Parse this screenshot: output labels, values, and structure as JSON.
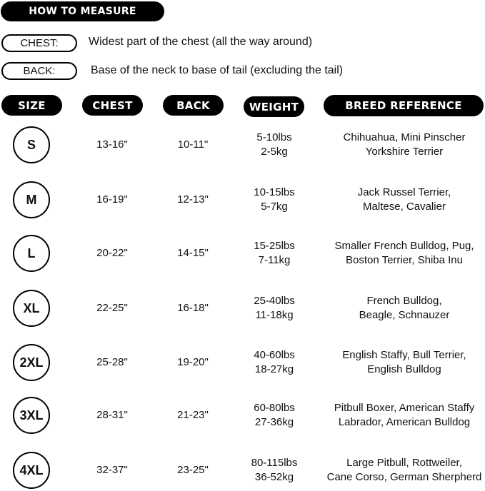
{
  "how_to_measure": {
    "title": "HOW TO MEASURE",
    "items": [
      {
        "label": "CHEST:",
        "description": "Widest part of the chest (all the way around)"
      },
      {
        "label": "BACK:",
        "description": "Base of the neck to base of tail (excluding the tail)"
      }
    ]
  },
  "table": {
    "headers": [
      "SIZE",
      "CHEST",
      "BACK",
      "WEIGHT",
      "BREED REFERENCE"
    ],
    "rows": [
      {
        "size": "S",
        "chest": "13-16\"",
        "back": "10-11\"",
        "weight_lbs": "5-10lbs",
        "weight_kg": "2-5kg",
        "breed_1": "Chihuahua, Mini Pinscher",
        "breed_2": "Yorkshire Terrier"
      },
      {
        "size": "M",
        "chest": "16-19\"",
        "back": "12-13\"",
        "weight_lbs": "10-15lbs",
        "weight_kg": "5-7kg",
        "breed_1": "Jack Russel Terrier,",
        "breed_2": "Maltese, Cavalier"
      },
      {
        "size": "L",
        "chest": "20-22\"",
        "back": "14-15\"",
        "weight_lbs": "15-25lbs",
        "weight_kg": "7-11kg",
        "breed_1": "Smaller French Bulldog, Pug,",
        "breed_2": "Boston Terrier, Shiba Inu"
      },
      {
        "size": "XL",
        "chest": "22-25\"",
        "back": "16-18\"",
        "weight_lbs": "25-40lbs",
        "weight_kg": "11-18kg",
        "breed_1": "French Bulldog,",
        "breed_2": "Beagle, Schnauzer"
      },
      {
        "size": "2XL",
        "chest": "25-28\"",
        "back": "19-20\"",
        "weight_lbs": "40-60lbs",
        "weight_kg": "18-27kg",
        "breed_1": "English Staffy, Bull Terrier,",
        "breed_2": "English Bulldog"
      },
      {
        "size": "3XL",
        "chest": "28-31\"",
        "back": "21-23\"",
        "weight_lbs": "60-80lbs",
        "weight_kg": "27-36kg",
        "breed_1": "Pitbull Boxer, American Staffy",
        "breed_2": "Labrador, American Bulldog"
      },
      {
        "size": "4XL",
        "chest": "32-37\"",
        "back": "23-25\"",
        "weight_lbs": "80-115lbs",
        "weight_kg": "36-52kg",
        "breed_1": "Large Pitbull, Rottweiler,",
        "breed_2": "Cane Corso, German Sherpherd"
      }
    ]
  }
}
